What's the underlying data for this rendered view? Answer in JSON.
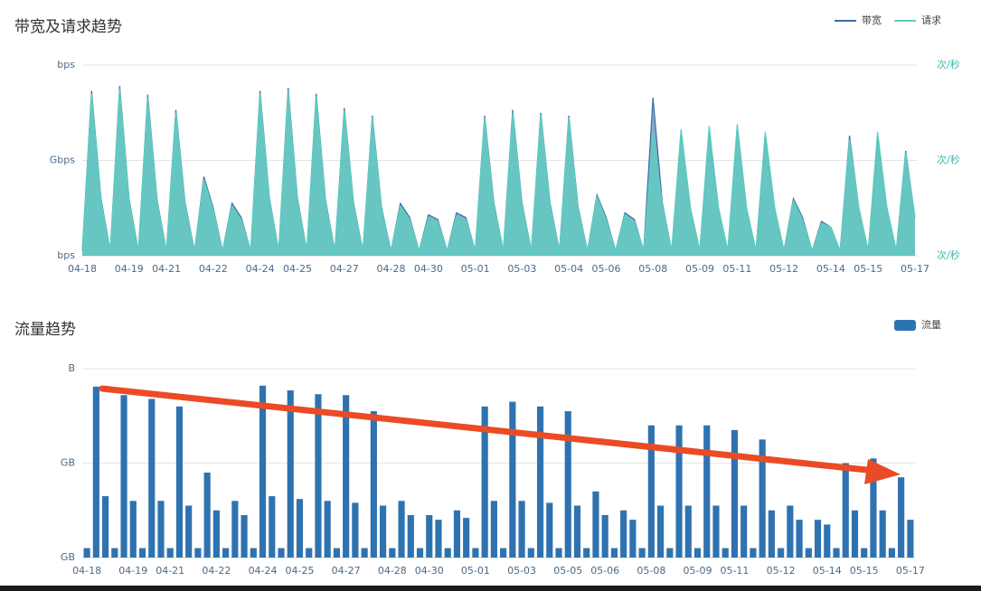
{
  "chart_data": [
    {
      "type": "line",
      "title": "带宽及请求趋势",
      "legend": "top-right",
      "grid": true,
      "categories": [
        "04-18",
        null,
        null,
        null,
        null,
        "04-19",
        null,
        null,
        null,
        "04-21",
        null,
        null,
        null,
        null,
        "04-22",
        null,
        null,
        null,
        null,
        "04-24",
        null,
        null,
        null,
        "04-25",
        null,
        null,
        null,
        null,
        "04-27",
        null,
        null,
        null,
        null,
        "04-28",
        null,
        null,
        null,
        "04-30",
        null,
        null,
        null,
        null,
        "05-01",
        null,
        null,
        null,
        null,
        "05-03",
        null,
        null,
        null,
        null,
        "05-04",
        null,
        null,
        null,
        "05-06",
        null,
        null,
        null,
        null,
        "05-08",
        null,
        null,
        null,
        null,
        "05-09",
        null,
        null,
        null,
        "05-11",
        null,
        null,
        null,
        null,
        "05-12",
        null,
        null,
        null,
        null,
        "05-14",
        null,
        null,
        null,
        "05-15",
        null,
        null,
        null,
        null,
        "05-17"
      ],
      "ylim": [
        0,
        2
      ],
      "yticks": [
        {
          "value": 0,
          "label": "bps"
        },
        {
          "value": 1,
          "label": "Gbps"
        },
        {
          "value": 2,
          "label": "bps"
        }
      ],
      "y2lim": [
        0,
        2
      ],
      "y2ticks": [
        {
          "value": 0,
          "label": "次/秒"
        },
        {
          "value": 1,
          "label": "次/秒"
        },
        {
          "value": 2,
          "label": "次/秒"
        }
      ],
      "series": [
        {
          "name": "带宽",
          "color": "#3b6ea5",
          "axis": "y",
          "values": [
            0.05,
            1.73,
            0.6,
            0.05,
            1.78,
            0.6,
            0.05,
            1.69,
            0.58,
            0.05,
            1.53,
            0.55,
            0.05,
            0.83,
            0.5,
            0.05,
            0.55,
            0.4,
            0.05,
            1.73,
            0.6,
            0.05,
            1.76,
            0.6,
            0.05,
            1.7,
            0.58,
            0.05,
            1.55,
            0.55,
            0.05,
            1.47,
            0.5,
            0.05,
            0.55,
            0.4,
            0.05,
            0.43,
            0.38,
            0.05,
            0.45,
            0.4,
            0.05,
            1.47,
            0.55,
            0.05,
            1.53,
            0.55,
            0.05,
            1.5,
            0.55,
            0.05,
            1.47,
            0.5,
            0.05,
            0.64,
            0.4,
            0.05,
            0.45,
            0.38,
            0.05,
            1.66,
            0.55,
            0.05,
            1.31,
            0.5,
            0.05,
            1.31,
            0.5,
            0.05,
            1.36,
            0.5,
            0.05,
            1.28,
            0.5,
            0.05,
            0.6,
            0.4,
            0.05,
            0.36,
            0.3,
            0.05,
            1.26,
            0.5,
            0.05,
            1.26,
            0.5,
            0.05,
            1.1,
            0.4
          ]
        },
        {
          "name": "请求",
          "color": "#5ccfbf",
          "axis": "y2",
          "values": [
            0.05,
            1.7,
            0.58,
            0.05,
            1.75,
            0.58,
            0.05,
            1.66,
            0.56,
            0.05,
            1.5,
            0.53,
            0.05,
            0.8,
            0.48,
            0.05,
            0.52,
            0.38,
            0.05,
            1.7,
            0.58,
            0.05,
            1.73,
            0.58,
            0.05,
            1.67,
            0.56,
            0.05,
            1.52,
            0.53,
            0.05,
            1.45,
            0.48,
            0.05,
            0.52,
            0.38,
            0.05,
            0.4,
            0.36,
            0.05,
            0.42,
            0.38,
            0.05,
            1.45,
            0.53,
            0.05,
            1.5,
            0.53,
            0.05,
            1.48,
            0.53,
            0.05,
            1.45,
            0.48,
            0.05,
            0.62,
            0.38,
            0.05,
            0.43,
            0.36,
            0.05,
            1.3,
            0.53,
            0.05,
            1.33,
            0.5,
            0.05,
            1.36,
            0.5,
            0.05,
            1.38,
            0.5,
            0.05,
            1.3,
            0.5,
            0.05,
            0.58,
            0.38,
            0.05,
            0.34,
            0.3,
            0.05,
            1.22,
            0.5,
            0.05,
            1.3,
            0.5,
            0.05,
            1.08,
            0.4
          ]
        }
      ]
    },
    {
      "type": "bar",
      "title": "流量趋势",
      "legend": "top-right",
      "grid": true,
      "categories": [
        "04-18",
        null,
        null,
        null,
        null,
        "04-19",
        null,
        null,
        null,
        "04-21",
        null,
        null,
        null,
        null,
        "04-22",
        null,
        null,
        null,
        null,
        "04-24",
        null,
        null,
        null,
        "04-25",
        null,
        null,
        null,
        null,
        "04-27",
        null,
        null,
        null,
        null,
        "04-28",
        null,
        null,
        null,
        "04-30",
        null,
        null,
        null,
        null,
        "05-01",
        null,
        null,
        null,
        null,
        "05-03",
        null,
        null,
        null,
        null,
        "05-05",
        null,
        null,
        null,
        "05-06",
        null,
        null,
        null,
        null,
        "05-08",
        null,
        null,
        null,
        null,
        "05-09",
        null,
        null,
        null,
        "05-11",
        null,
        null,
        null,
        null,
        "05-12",
        null,
        null,
        null,
        null,
        "05-14",
        null,
        null,
        null,
        "05-15",
        null,
        null,
        null,
        null,
        "05-17"
      ],
      "ylim": [
        0,
        2
      ],
      "yticks": [
        {
          "value": 0,
          "label": "GB"
        },
        {
          "value": 1,
          "label": "GB"
        },
        {
          "value": 2,
          "label": "B"
        }
      ],
      "series": [
        {
          "name": "流量",
          "color": "#2f72b0",
          "values": [
            0.1,
            1.81,
            0.65,
            0.1,
            1.72,
            0.6,
            0.1,
            1.68,
            0.6,
            0.1,
            1.6,
            0.55,
            0.1,
            0.9,
            0.5,
            0.1,
            0.6,
            0.45,
            0.1,
            1.82,
            0.65,
            0.1,
            1.77,
            0.62,
            0.1,
            1.73,
            0.6,
            0.1,
            1.72,
            0.58,
            0.1,
            1.55,
            0.55,
            0.1,
            0.6,
            0.45,
            0.1,
            0.45,
            0.4,
            0.1,
            0.5,
            0.42,
            0.1,
            1.6,
            0.6,
            0.1,
            1.65,
            0.6,
            0.1,
            1.6,
            0.58,
            0.1,
            1.55,
            0.55,
            0.1,
            0.7,
            0.45,
            0.1,
            0.5,
            0.4,
            0.1,
            1.4,
            0.55,
            0.1,
            1.4,
            0.55,
            0.1,
            1.4,
            0.55,
            0.1,
            1.35,
            0.55,
            0.1,
            1.25,
            0.5,
            0.1,
            0.55,
            0.4,
            0.1,
            0.4,
            0.35,
            0.1,
            1.0,
            0.5,
            0.1,
            1.05,
            0.5,
            0.1,
            0.85,
            0.4
          ]
        }
      ]
    }
  ]
}
